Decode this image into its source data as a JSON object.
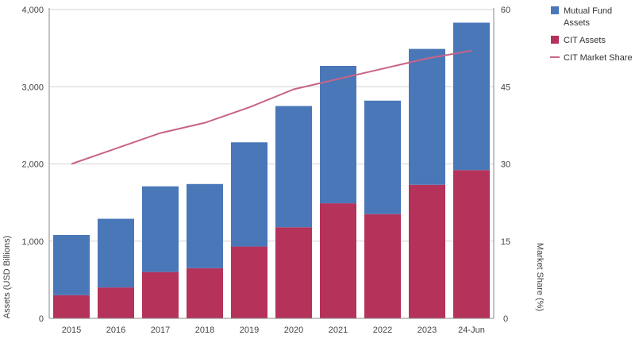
{
  "chart_data": {
    "type": "bar",
    "stacked": true,
    "categories": [
      "2015",
      "2016",
      "2017",
      "2018",
      "2019",
      "2020",
      "2021",
      "2022",
      "2023",
      "24-Jun"
    ],
    "series": [
      {
        "name": "CIT Assets",
        "type": "bar",
        "axis": "left",
        "color": "#b5325a",
        "values": [
          300,
          400,
          600,
          650,
          930,
          1180,
          1490,
          1350,
          1730,
          1920
        ]
      },
      {
        "name": "Mutual Fund Assets",
        "type": "bar",
        "axis": "left",
        "color": "#4a77b8",
        "values": [
          780,
          890,
          1110,
          1090,
          1350,
          1570,
          1780,
          1470,
          1760,
          1910
        ]
      },
      {
        "name": "CIT Market Share",
        "type": "line",
        "axis": "right",
        "color": "#c86488",
        "values": [
          30,
          33,
          36,
          38,
          41,
          44.5,
          46.5,
          48.5,
          50.5,
          52
        ]
      }
    ],
    "y_left": {
      "label": "Assets (USD Billions)",
      "ylim": [
        0,
        4000
      ],
      "ticks": [
        0,
        1000,
        2000,
        3000,
        4000
      ],
      "tick_labels": [
        "0",
        "1,000",
        "2,000",
        "3,000",
        "4,000"
      ]
    },
    "y_right": {
      "label": "Market Share (%)",
      "ylim": [
        0,
        60
      ],
      "ticks": [
        0,
        15,
        30,
        45,
        60
      ],
      "tick_labels": [
        "0",
        "15",
        "30",
        "45",
        "60"
      ]
    },
    "legend": {
      "placement": "top-right",
      "items": [
        {
          "lines": [
            "Mutual Fund",
            "Assets"
          ],
          "color": "#4a77b8",
          "marker": "square"
        },
        {
          "lines": [
            "CIT Assets"
          ],
          "color": "#b5325a",
          "marker": "square"
        },
        {
          "lines": [
            "CIT Market Share"
          ],
          "color": "#c86488",
          "marker": "line"
        }
      ]
    },
    "grid": true
  }
}
